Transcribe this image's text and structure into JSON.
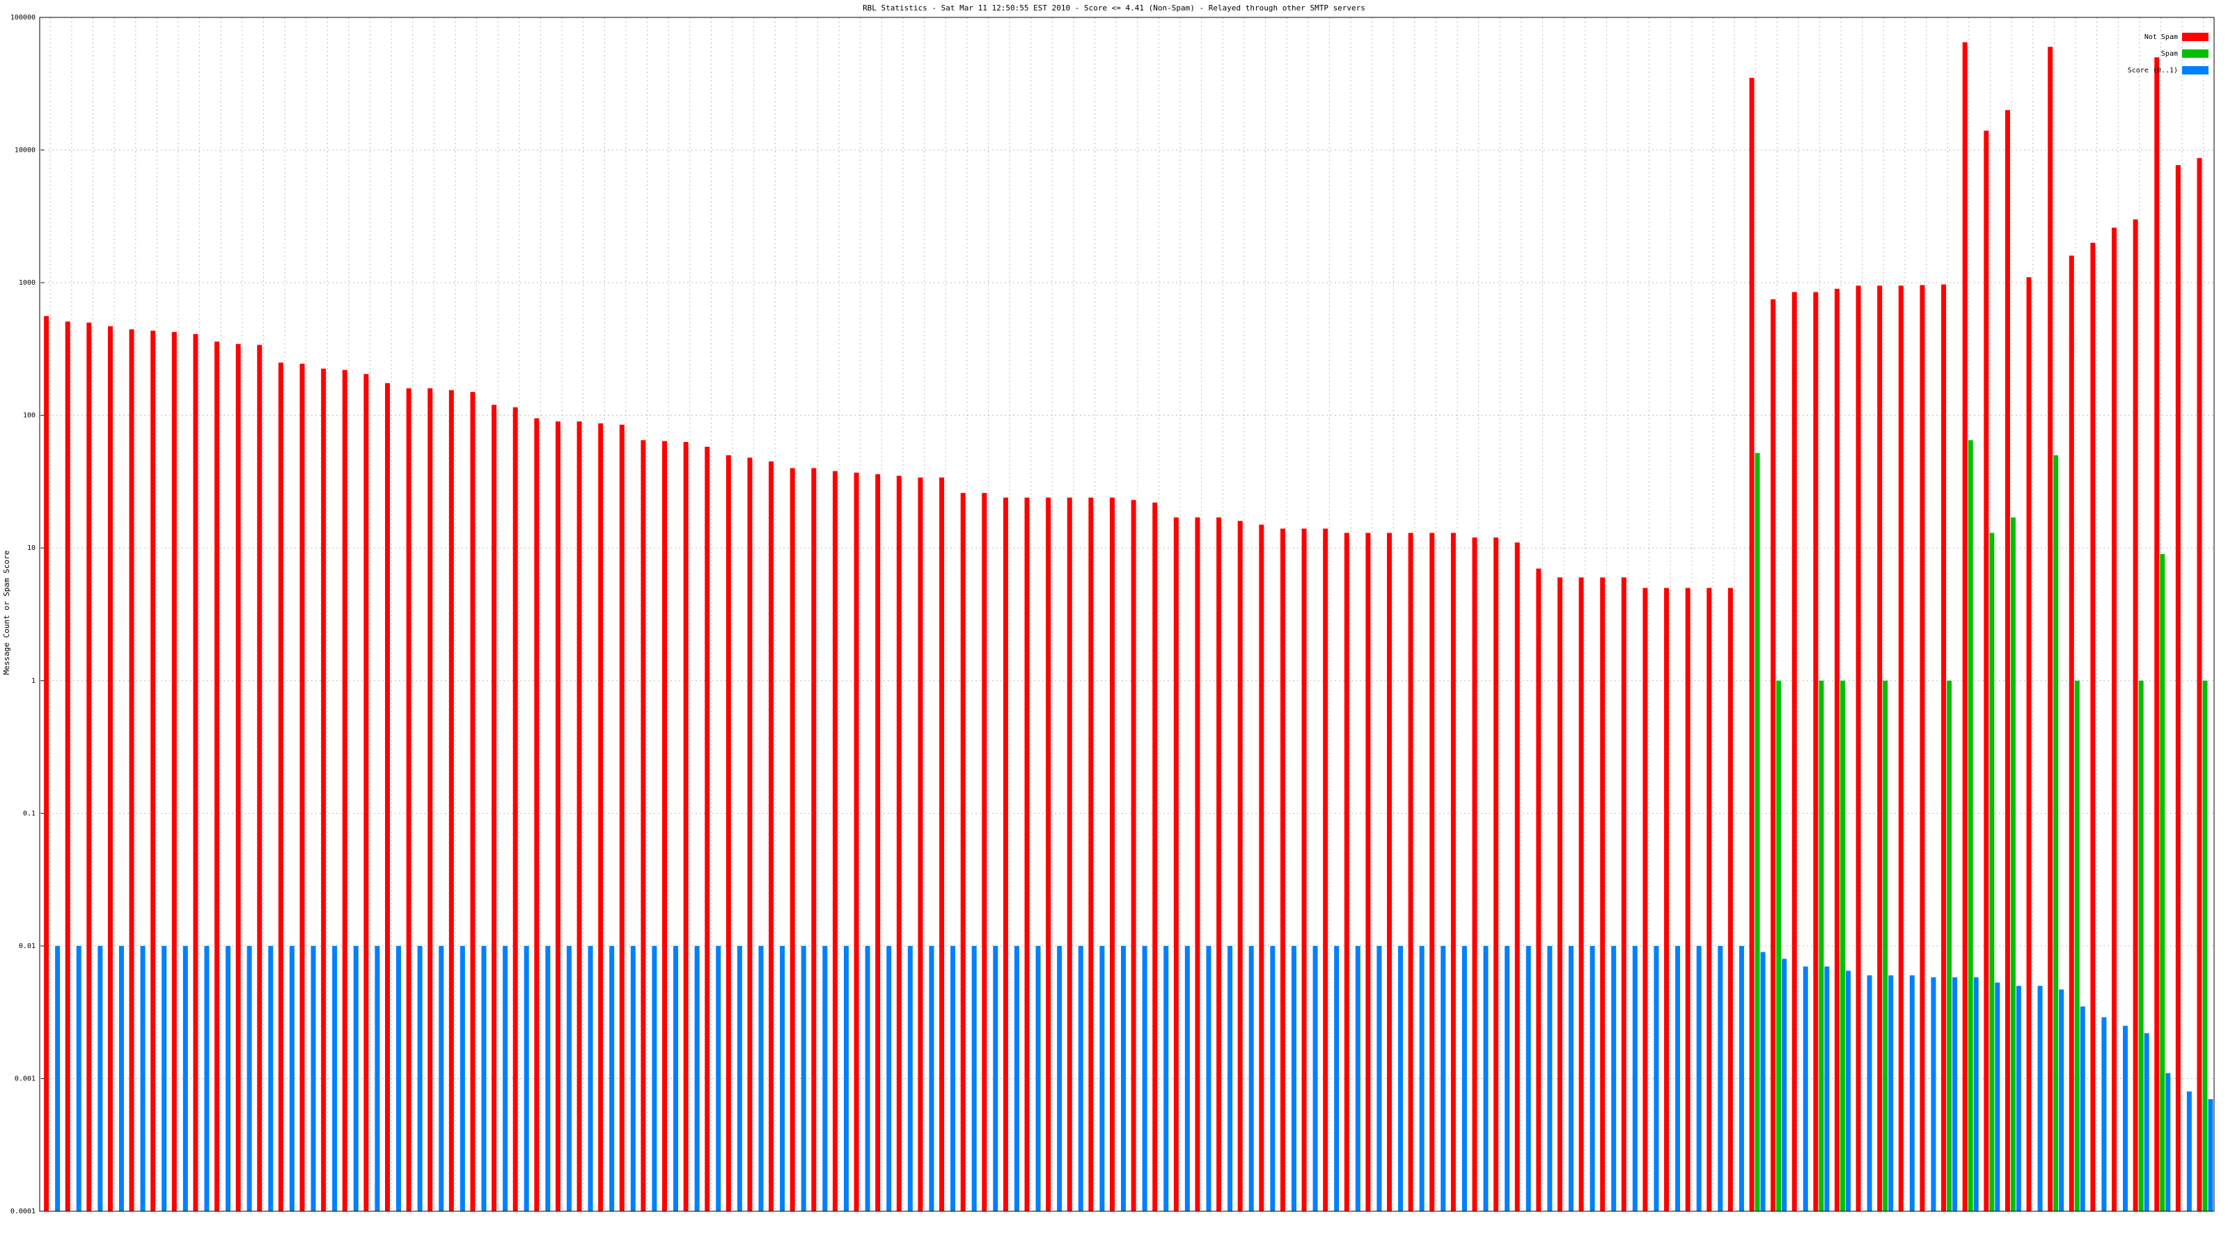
{
  "chart_data": {
    "type": "bar",
    "title": "RBL Statistics - Sat Mar 11 12:50:55 EST 2010 - Score <= 4.41 (Non-Spam) - Relayed through other SMTP servers",
    "y_label": "Message Count or Spam Score",
    "log": true,
    "grid": true,
    "legend": "upper right",
    "ylim": [
      0.0001,
      100000
    ],
    "yticks": [
      0.0001,
      0.001,
      0.01,
      0.1,
      1,
      10,
      100,
      1000,
      10000,
      100000
    ],
    "categories": [
      null,
      null,
      null,
      null,
      null,
      null,
      null,
      null,
      null,
      null,
      null,
      null,
      null,
      null,
      null,
      null,
      null,
      null,
      null,
      null,
      null,
      null,
      null,
      null,
      null,
      null,
      null,
      null,
      null,
      null,
      null,
      null,
      null,
      null,
      null,
      null,
      null,
      null,
      null,
      null,
      null,
      null,
      null,
      null,
      null,
      null,
      null,
      null,
      null,
      null,
      null,
      null,
      null,
      null,
      null,
      null,
      null,
      null,
      null,
      null,
      null,
      null,
      null,
      null,
      null,
      null,
      null,
      null,
      null,
      null,
      null,
      null,
      null,
      null,
      null,
      null,
      null,
      null,
      null,
      null,
      null,
      null,
      null,
      null,
      null,
      null,
      null,
      null,
      null,
      null,
      null,
      null,
      null,
      null,
      null,
      null,
      null,
      null,
      null,
      null,
      null,
      null
    ],
    "series": [
      {
        "name": "Not Spam",
        "color": "#ff0000",
        "values": [
          560,
          510,
          500,
          470,
          445,
          435,
          425,
          410,
          360,
          345,
          340,
          250,
          245,
          225,
          220,
          205,
          175,
          160,
          160,
          155,
          150,
          120,
          115,
          95,
          90,
          90,
          87,
          85,
          65,
          64,
          63,
          58,
          50,
          48,
          45,
          40,
          40,
          38,
          37,
          36,
          35,
          34,
          34,
          26,
          26,
          24,
          24,
          24,
          24,
          24,
          24,
          23,
          22,
          17,
          17,
          17,
          16,
          15,
          14,
          14,
          14,
          13,
          13,
          13,
          13,
          13,
          13,
          12,
          12,
          11,
          7,
          6,
          6,
          6,
          6,
          5,
          5,
          5,
          5,
          5,
          35000,
          750,
          850,
          850,
          900,
          950,
          950,
          950,
          960,
          970,
          65000,
          14000,
          20000,
          1100,
          60000,
          1600,
          2000,
          2600,
          3000,
          50000,
          7700,
          8700
        ]
      },
      {
        "name": "Spam",
        "color": "#00c000",
        "values": [
          null,
          null,
          null,
          null,
          null,
          null,
          null,
          null,
          null,
          null,
          null,
          null,
          null,
          null,
          null,
          null,
          null,
          null,
          null,
          null,
          null,
          null,
          null,
          null,
          null,
          null,
          null,
          null,
          null,
          null,
          null,
          null,
          null,
          null,
          null,
          null,
          null,
          null,
          null,
          null,
          null,
          null,
          null,
          null,
          null,
          null,
          null,
          null,
          null,
          null,
          null,
          null,
          null,
          null,
          null,
          null,
          null,
          null,
          null,
          null,
          null,
          null,
          null,
          null,
          null,
          null,
          null,
          null,
          null,
          null,
          null,
          null,
          null,
          null,
          null,
          null,
          null,
          null,
          null,
          null,
          52,
          1,
          null,
          1,
          1,
          null,
          1,
          null,
          null,
          1,
          65,
          13,
          17,
          null,
          50,
          1,
          null,
          null,
          1,
          9,
          null,
          1
        ]
      },
      {
        "name": "Score (0..1)",
        "color": "#0080ff",
        "values": [
          0.01,
          0.01,
          0.01,
          0.01,
          0.01,
          0.01,
          0.01,
          0.01,
          0.01,
          0.01,
          0.01,
          0.01,
          0.01,
          0.01,
          0.01,
          0.01,
          0.01,
          0.01,
          0.01,
          0.01,
          0.01,
          0.01,
          0.01,
          0.01,
          0.01,
          0.01,
          0.01,
          0.01,
          0.01,
          0.01,
          0.01,
          0.01,
          0.01,
          0.01,
          0.01,
          0.01,
          0.01,
          0.01,
          0.01,
          0.01,
          0.01,
          0.01,
          0.01,
          0.01,
          0.01,
          0.01,
          0.01,
          0.01,
          0.01,
          0.01,
          0.01,
          0.01,
          0.01,
          0.01,
          0.01,
          0.01,
          0.01,
          0.01,
          0.01,
          0.01,
          0.01,
          0.01,
          0.01,
          0.01,
          0.01,
          0.01,
          0.01,
          0.01,
          0.01,
          0.01,
          0.01,
          0.01,
          0.01,
          0.01,
          0.01,
          0.01,
          0.01,
          0.01,
          0.01,
          0.01,
          0.009,
          0.008,
          0.007,
          0.007,
          0.0065,
          0.006,
          0.006,
          0.006,
          0.0058,
          0.0058,
          0.0058,
          0.0053,
          0.005,
          0.005,
          0.0047,
          0.0035,
          0.0029,
          0.0025,
          0.0022,
          0.0011,
          0.0008,
          0.0007
        ]
      }
    ]
  }
}
